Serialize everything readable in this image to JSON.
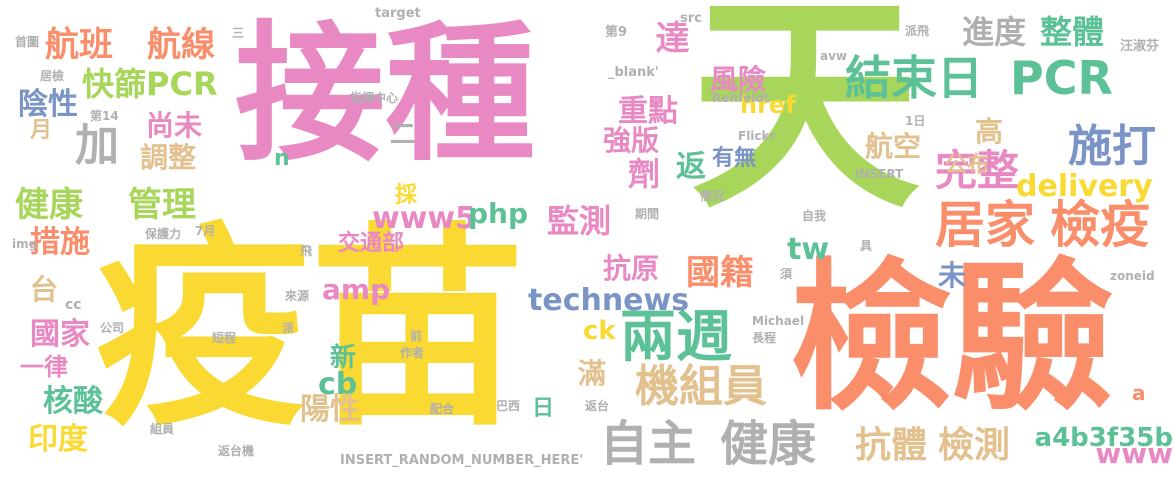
{
  "palette": {
    "pink": "#E889C4",
    "green": "#A7D65A",
    "yellow": "#FAD932",
    "orange": "#FA8E6A",
    "teal": "#5DC198",
    "gray": "#B0B0B0",
    "tan": "#E2C18E",
    "blue": "#7A94C6"
  },
  "words": [
    {
      "text": "接種",
      "color": "#E889C4"
    },
    {
      "text": "天",
      "color": "#A7D65A"
    },
    {
      "text": "疫苗",
      "color": "#FAD932"
    },
    {
      "text": "檢驗",
      "color": "#FA8E6A"
    },
    {
      "text": "結束日",
      "color": "#5DC198"
    },
    {
      "text": "PCR",
      "color": "#5DC198"
    },
    {
      "text": "兩週",
      "color": "#5DC198"
    },
    {
      "text": "居家",
      "color": "#FA8E6A"
    },
    {
      "text": "檢疫",
      "color": "#FA8E6A"
    },
    {
      "text": "施打",
      "color": "#7A94C6"
    },
    {
      "text": "完整",
      "color": "#E889C4"
    },
    {
      "text": "自主",
      "color": "#B0B0B0"
    },
    {
      "text": "健康",
      "color": "#B0B0B0"
    },
    {
      "text": "機組員",
      "color": "#E2C18E"
    },
    {
      "text": "抗體",
      "color": "#E2C18E"
    },
    {
      "text": "檢測",
      "color": "#E2C18E"
    },
    {
      "text": "健康",
      "color": "#A7D65A"
    },
    {
      "text": "管理",
      "color": "#A7D65A"
    },
    {
      "text": "航班",
      "color": "#FA8E6A"
    },
    {
      "text": "航線",
      "color": "#FA8E6A"
    },
    {
      "text": "快篩PCR",
      "color": "#A7D65A"
    },
    {
      "text": "加",
      "color": "#B0B0B0"
    },
    {
      "text": "technews",
      "color": "#7A94C6"
    },
    {
      "text": "國籍",
      "color": "#FA8E6A"
    },
    {
      "text": "監測",
      "color": "#E889C4"
    },
    {
      "text": "www5",
      "color": "#E889C4"
    },
    {
      "text": "php",
      "color": "#5DC198"
    },
    {
      "text": "amp",
      "color": "#E889C4"
    },
    {
      "text": "tw",
      "color": "#5DC198"
    },
    {
      "text": "delivery",
      "color": "#FAD932"
    },
    {
      "text": "進度",
      "color": "#B0B0B0"
    },
    {
      "text": "整體",
      "color": "#5DC198"
    },
    {
      "text": "風險",
      "color": "#E889C4"
    },
    {
      "text": "重點",
      "color": "#E889C4"
    },
    {
      "text": "強版",
      "color": "#E889C4"
    },
    {
      "text": "劑",
      "color": "#E889C4"
    },
    {
      "text": "達",
      "color": "#E889C4"
    },
    {
      "text": "返",
      "color": "#5DC198"
    },
    {
      "text": "航空",
      "color": "#E2C18E"
    },
    {
      "text": "高",
      "color": "#E2C18E"
    },
    {
      "text": "公布",
      "color": "#E2C18E"
    },
    {
      "text": "措施",
      "color": "#FA8E6A"
    },
    {
      "text": "陰性",
      "color": "#7A94C6"
    },
    {
      "text": "尚未",
      "color": "#E889C4"
    },
    {
      "text": "調整",
      "color": "#E2C18E"
    },
    {
      "text": "採",
      "color": "#FAD932"
    },
    {
      "text": "抗原",
      "color": "#E889C4"
    },
    {
      "text": "國家",
      "color": "#E889C4"
    },
    {
      "text": "核酸",
      "color": "#5DC198"
    },
    {
      "text": "印度",
      "color": "#FAD932"
    },
    {
      "text": "台",
      "color": "#E2C18E"
    },
    {
      "text": "一律",
      "color": "#E889C4"
    },
    {
      "text": "月",
      "color": "#E2C18E"
    },
    {
      "text": "cb",
      "color": "#5DC198"
    },
    {
      "text": "陽性",
      "color": "#E2C18E"
    },
    {
      "text": "新",
      "color": "#5DC198"
    },
    {
      "text": "日",
      "color": "#5DC198"
    },
    {
      "text": "滿",
      "color": "#E2C18E"
    },
    {
      "text": "ck",
      "color": "#FAD932"
    },
    {
      "text": "未",
      "color": "#7A94C6"
    },
    {
      "text": "www",
      "color": "#E889C4"
    },
    {
      "text": "a4b3f35b",
      "color": "#5DC198"
    },
    {
      "text": "href",
      "color": "#FAD932"
    },
    {
      "text": "有無",
      "color": "#7A94C6"
    },
    {
      "text": "交通部",
      "color": "#E889C4"
    },
    {
      "text": "n",
      "color": "#5DC198"
    },
    {
      "text": "二",
      "color": "#B0B0B0"
    },
    {
      "text": "a",
      "color": "#FA8E6A"
    },
    {
      "text": "target",
      "color": "#B0B0B0"
    },
    {
      "text": "src",
      "color": "#B0B0B0"
    },
    {
      "text": "第9",
      "color": "#B0B0B0"
    },
    {
      "text": "_blank'",
      "color": "#B0B0B0"
    },
    {
      "text": "Rehfeldt",
      "color": "#B0B0B0"
    },
    {
      "text": "avw",
      "color": "#B0B0B0"
    },
    {
      "text": "派飛",
      "color": "#B0B0B0"
    },
    {
      "text": "汪淑芬",
      "color": "#B0B0B0"
    },
    {
      "text": "Flickr",
      "color": "#B0B0B0"
    },
    {
      "text": "1日",
      "color": "#B0B0B0"
    },
    {
      "text": "INSERT",
      "color": "#B0B0B0"
    },
    {
      "text": "情況",
      "color": "#B0B0B0"
    },
    {
      "text": "期間",
      "color": "#B0B0B0"
    },
    {
      "text": "自我",
      "color": "#B0B0B0"
    },
    {
      "text": "具",
      "color": "#B0B0B0"
    },
    {
      "text": "須",
      "color": "#B0B0B0"
    },
    {
      "text": "飛",
      "color": "#B0B0B0"
    },
    {
      "text": "保護力",
      "color": "#B0B0B0"
    },
    {
      "text": "7月",
      "color": "#B0B0B0"
    },
    {
      "text": "img",
      "color": "#B0B0B0"
    },
    {
      "text": "cc",
      "color": "#B0B0B0"
    },
    {
      "text": "公司",
      "color": "#B0B0B0"
    },
    {
      "text": "短程",
      "color": "#B0B0B0"
    },
    {
      "text": "派",
      "color": "#B0B0B0"
    },
    {
      "text": "來源",
      "color": "#B0B0B0"
    },
    {
      "text": "前",
      "color": "#B0B0B0"
    },
    {
      "text": "作者",
      "color": "#B0B0B0"
    },
    {
      "text": "Michael",
      "color": "#B0B0B0"
    },
    {
      "text": "長程",
      "color": "#B0B0B0"
    },
    {
      "text": "zoneid",
      "color": "#B0B0B0"
    },
    {
      "text": "配合",
      "color": "#B0B0B0"
    },
    {
      "text": "巴西",
      "color": "#B0B0B0"
    },
    {
      "text": "返台",
      "color": "#B0B0B0"
    },
    {
      "text": "組員",
      "color": "#B0B0B0"
    },
    {
      "text": "返台機",
      "color": "#B0B0B0"
    },
    {
      "text": "INSERT_RANDOM_NUMBER_HERE'",
      "color": "#B0B0B0"
    },
    {
      "text": "首圖",
      "color": "#B0B0B0"
    },
    {
      "text": "居檢",
      "color": "#B0B0B0"
    },
    {
      "text": "第14",
      "color": "#B0B0B0"
    },
    {
      "text": "指揮中心",
      "color": "#B0B0B0"
    },
    {
      "text": "三",
      "color": "#B0B0B0"
    }
  ]
}
